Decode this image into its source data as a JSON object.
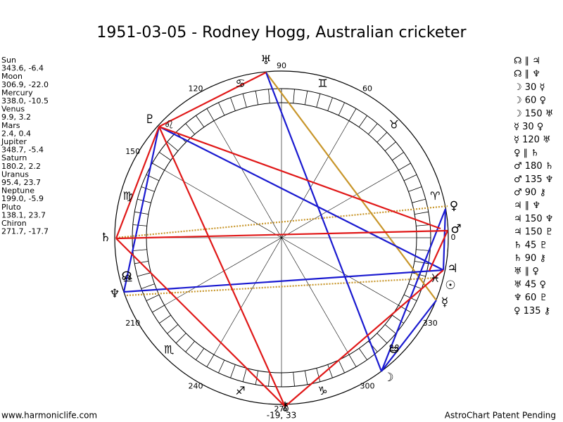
{
  "title": "1951-03-05 - Rodney Hogg, Australian cricketer",
  "planets": [
    {
      "name": "Sun",
      "position": "343.6, -6.4",
      "glyph": "☉"
    },
    {
      "name": "Moon",
      "position": "306.9, -22.0",
      "glyph": "☽"
    },
    {
      "name": "Mercury",
      "position": "338.0, -10.5",
      "glyph": "☿"
    },
    {
      "name": "Venus",
      "position": "9.9, 3.2",
      "glyph": "♀"
    },
    {
      "name": "Mars",
      "position": "2.4, 0.4",
      "glyph": "♂"
    },
    {
      "name": "Jupiter",
      "position": "348.7, -5.4",
      "glyph": "♃"
    },
    {
      "name": "Saturn",
      "position": "180.2, 2.2",
      "glyph": "♄"
    },
    {
      "name": "Uranus",
      "position": "95.4, 23.7",
      "glyph": "♅"
    },
    {
      "name": "Neptune",
      "position": "199.0, -5.9",
      "glyph": "♆"
    },
    {
      "name": "Pluto",
      "position": "138.1, 23.7",
      "glyph": "♇"
    },
    {
      "name": "Chiron",
      "position": "271.7, -17.7",
      "glyph": "⚷"
    }
  ],
  "node_glyphs": [
    "☊",
    "☋"
  ],
  "zodiac": [
    "♈",
    "♉",
    "♊",
    "♋",
    "♌",
    "♍",
    "♎",
    "♏",
    "♐",
    "♑",
    "♒",
    "♓"
  ],
  "degree_labels": [
    "0",
    "60",
    "90",
    "120",
    "150",
    "210",
    "240",
    "270",
    "300",
    "330"
  ],
  "aspects": [
    "☊ ∥ ♃",
    "☊ ∥ ♆",
    "☽ 30 ☿",
    "☽ 60 ♀",
    "☽ 150 ♅",
    "☿ 30 ♀",
    "☿ 120 ♅",
    "♀ ∥ ♄",
    "♂ 180 ♄",
    "♂ 135 ♆",
    "♂ 90 ⚷",
    "♃ ∥ ♆",
    "♃ 150 ♆",
    "♃ 150 ♇",
    "♄ 45 ♇",
    "♄ 90 ⚷",
    "♅ ∥ ♀",
    "♅ 45 ♀",
    "♆ 60 ♇",
    "♀ 135 ⚷"
  ],
  "footer": {
    "left": "www.harmoniclife.com",
    "center": "-19, 33",
    "right": "AstroChart Patent Pending"
  }
}
